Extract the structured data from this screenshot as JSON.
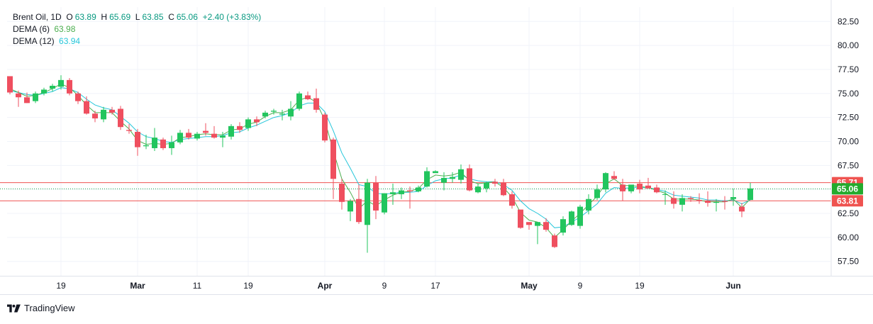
{
  "legend": {
    "symbol": "Brent Oil",
    "interval": "1D",
    "open_label": "O",
    "open": "63.89",
    "high_label": "H",
    "high": "65.69",
    "low_label": "L",
    "low": "63.85",
    "close_label": "C",
    "close": "65.06",
    "change": "+2.40 (+3.83%)",
    "dema6_label": "DEMA (6)",
    "dema6_value": "63.98",
    "dema12_label": "DEMA (12)",
    "dema12_value": "63.94"
  },
  "brand": {
    "name": "TradingView"
  },
  "colors": {
    "up": "#22c55e",
    "down": "#ef4f5f",
    "dema6": "#4caf50",
    "dema12": "#26c6da",
    "hline": "#ef5350",
    "grid": "#f0f3fa",
    "axis_text": "#131722"
  },
  "chart_data": {
    "type": "candlestick",
    "title": "Brent Oil, 1D",
    "ylim": [
      56,
      84
    ],
    "y_ticks": [
      57.5,
      60,
      62.5,
      65,
      67.5,
      70,
      72.5,
      75,
      77.5,
      80,
      82.5
    ],
    "x_ticks": [
      {
        "label": "19",
        "index": 6,
        "bold": false
      },
      {
        "label": "Mar",
        "index": 15,
        "bold": true
      },
      {
        "label": "11",
        "index": 22,
        "bold": false
      },
      {
        "label": "19",
        "index": 28,
        "bold": false
      },
      {
        "label": "Apr",
        "index": 37,
        "bold": true
      },
      {
        "label": "9",
        "index": 44,
        "bold": false
      },
      {
        "label": "17",
        "index": 50,
        "bold": false
      },
      {
        "label": "May",
        "index": 61,
        "bold": true
      },
      {
        "label": "9",
        "index": 67,
        "bold": false
      },
      {
        "label": "19",
        "index": 74,
        "bold": false
      },
      {
        "label": "Jun",
        "index": 85,
        "bold": true
      }
    ],
    "h_lines": [
      {
        "value": 65.71,
        "label": "65.71",
        "style": "solid"
      },
      {
        "value": 63.81,
        "label": "63.81",
        "style": "solid"
      },
      {
        "value": 65.06,
        "label": "65.06",
        "style": "dotted"
      }
    ],
    "last_price": 65.06,
    "candles": [
      [
        76.8,
        76.8,
        74.9,
        75.1
      ],
      [
        75.0,
        75.3,
        73.6,
        74.6
      ],
      [
        74.6,
        75.1,
        74.0,
        74.0
      ],
      [
        74.2,
        75.2,
        74.0,
        75.0
      ],
      [
        75.0,
        75.6,
        74.8,
        75.4
      ],
      [
        75.5,
        76.0,
        75.2,
        75.8
      ],
      [
        75.7,
        76.9,
        75.4,
        76.4
      ],
      [
        76.4,
        76.6,
        74.8,
        75.0
      ],
      [
        75.0,
        75.2,
        73.9,
        74.2
      ],
      [
        74.2,
        74.7,
        72.8,
        72.9
      ],
      [
        72.9,
        73.2,
        72.0,
        72.4
      ],
      [
        72.3,
        73.6,
        72.0,
        73.3
      ],
      [
        73.3,
        73.6,
        72.8,
        73.0
      ],
      [
        73.4,
        73.7,
        71.2,
        71.5
      ],
      [
        71.2,
        71.8,
        70.8,
        71.1
      ],
      [
        71.0,
        71.3,
        68.5,
        69.4
      ],
      [
        69.5,
        70.7,
        69.2,
        69.6
      ],
      [
        69.3,
        71.4,
        69.0,
        70.4
      ],
      [
        70.2,
        70.4,
        69.1,
        69.3
      ],
      [
        69.3,
        70.6,
        68.6,
        69.9
      ],
      [
        69.9,
        71.2,
        69.7,
        70.9
      ],
      [
        70.9,
        71.3,
        70.2,
        70.4
      ],
      [
        70.3,
        71.0,
        70.1,
        70.8
      ],
      [
        71.1,
        71.9,
        70.6,
        70.9
      ],
      [
        70.8,
        71.6,
        70.3,
        70.4
      ],
      [
        70.4,
        71.0,
        69.4,
        70.6
      ],
      [
        70.5,
        71.8,
        70.2,
        71.6
      ],
      [
        71.6,
        72.0,
        70.9,
        71.2
      ],
      [
        71.4,
        72.5,
        71.1,
        72.3
      ],
      [
        72.3,
        72.6,
        71.6,
        72.0
      ],
      [
        72.6,
        73.2,
        72.4,
        73.0
      ],
      [
        73.1,
        73.4,
        72.8,
        73.2
      ],
      [
        72.8,
        73.3,
        72.2,
        72.9
      ],
      [
        72.6,
        74.2,
        72.2,
        73.4
      ],
      [
        73.4,
        75.2,
        73.2,
        75.0
      ],
      [
        74.8,
        75.2,
        74.3,
        74.4
      ],
      [
        74.5,
        75.5,
        73.0,
        73.3
      ],
      [
        72.8,
        73.0,
        69.9,
        70.1
      ],
      [
        70.2,
        70.4,
        64.0,
        66.1
      ],
      [
        65.6,
        66.1,
        62.9,
        63.7
      ],
      [
        62.7,
        64.0,
        61.7,
        63.8
      ],
      [
        64.0,
        65.5,
        61.4,
        61.6
      ],
      [
        61.3,
        66.1,
        58.4,
        65.7
      ],
      [
        65.7,
        66.4,
        61.9,
        62.8
      ],
      [
        62.6,
        64.6,
        62.4,
        64.6
      ],
      [
        64.5,
        65.6,
        63.4,
        64.7
      ],
      [
        64.5,
        65.2,
        64.0,
        64.9
      ],
      [
        64.9,
        65.3,
        63.0,
        64.8
      ],
      [
        64.8,
        65.4,
        64.7,
        65.2
      ],
      [
        65.3,
        67.3,
        65.2,
        66.9
      ],
      [
        66.7,
        67.0,
        66.8,
        66.9
      ],
      [
        65.7,
        66.8,
        64.9,
        66.2
      ],
      [
        66.1,
        66.8,
        65.7,
        66.3
      ],
      [
        66.0,
        67.6,
        65.6,
        67.1
      ],
      [
        67.2,
        67.6,
        64.8,
        64.9
      ],
      [
        64.7,
        65.6,
        64.6,
        65.3
      ],
      [
        65.1,
        65.8,
        64.7,
        65.7
      ],
      [
        65.8,
        66.1,
        65.3,
        65.6
      ],
      [
        65.7,
        66.1,
        64.3,
        64.4
      ],
      [
        64.5,
        64.8,
        63.0,
        63.3
      ],
      [
        62.9,
        62.8,
        60.9,
        61.0
      ],
      [
        61.6,
        61.6,
        60.8,
        61.3
      ],
      [
        61.2,
        61.6,
        59.3,
        61.6
      ],
      [
        61.6,
        62.0,
        60.6,
        60.8
      ],
      [
        60.2,
        60.4,
        58.9,
        59.0
      ],
      [
        60.5,
        62.2,
        60.2,
        61.9
      ],
      [
        61.3,
        62.8,
        61.2,
        62.7
      ],
      [
        61.2,
        63.4,
        60.9,
        63.2
      ],
      [
        62.8,
        64.5,
        62.4,
        64.0
      ],
      [
        64.1,
        65.5,
        63.9,
        65.0
      ],
      [
        65.0,
        66.8,
        64.7,
        66.7
      ],
      [
        66.4,
        66.9,
        66.0,
        66.1
      ],
      [
        65.5,
        66.1,
        63.8,
        64.8
      ],
      [
        64.8,
        65.4,
        64.6,
        65.5
      ],
      [
        65.6,
        66.0,
        64.6,
        65.0
      ],
      [
        65.4,
        66.2,
        65.3,
        65.1
      ],
      [
        65.2,
        65.5,
        64.6,
        64.7
      ],
      [
        64.5,
        64.9,
        63.4,
        64.5
      ],
      [
        64.1,
        64.8,
        63.0,
        63.5
      ],
      [
        63.4,
        64.5,
        62.7,
        64.1
      ],
      [
        64.1,
        64.3,
        63.7,
        64.0
      ],
      [
        63.9,
        64.6,
        63.5,
        63.8
      ],
      [
        63.8,
        64.8,
        63.2,
        63.6
      ],
      [
        63.6,
        64.0,
        62.7,
        63.7
      ],
      [
        63.8,
        64.3,
        62.9,
        63.7
      ],
      [
        64.0,
        65.1,
        63.3,
        64.2
      ],
      [
        63.2,
        63.6,
        62.1,
        62.7
      ],
      [
        63.9,
        65.7,
        63.9,
        65.1
      ]
    ],
    "dema6": [
      75.5,
      75.1,
      74.7,
      74.8,
      75.1,
      75.5,
      76.0,
      75.6,
      74.8,
      73.8,
      73.0,
      73.0,
      73.0,
      72.1,
      71.3,
      70.1,
      69.7,
      69.8,
      69.7,
      69.8,
      70.4,
      70.5,
      70.7,
      70.8,
      70.7,
      70.7,
      71.2,
      71.3,
      71.8,
      72.0,
      72.6,
      73.0,
      73.0,
      73.3,
      74.3,
      74.6,
      74.1,
      72.2,
      69.0,
      66.1,
      64.7,
      63.0,
      63.8,
      63.3,
      63.9,
      64.4,
      64.7,
      64.8,
      65.1,
      66.0,
      66.5,
      66.4,
      66.5,
      66.8,
      65.9,
      65.6,
      65.7,
      65.8,
      65.2,
      64.2,
      62.6,
      61.8,
      61.6,
      61.0,
      60.0,
      60.8,
      61.7,
      62.5,
      63.4,
      64.3,
      65.6,
      66.1,
      65.4,
      65.4,
      65.3,
      65.2,
      64.9,
      64.6,
      64.0,
      64.0,
      64.0,
      63.9,
      63.7,
      63.7,
      63.7,
      64.0,
      63.1,
      64.0
    ],
    "dema12": [
      75.3,
      75.1,
      74.9,
      74.8,
      75.0,
      75.2,
      75.6,
      75.5,
      75.1,
      74.4,
      73.8,
      73.5,
      73.3,
      72.6,
      71.9,
      71.0,
      70.5,
      70.3,
      70.0,
      69.9,
      70.2,
      70.3,
      70.4,
      70.5,
      70.5,
      70.6,
      70.9,
      71.0,
      71.4,
      71.7,
      72.1,
      72.5,
      72.7,
      73.0,
      73.7,
      74.0,
      74.0,
      73.1,
      71.1,
      68.8,
      67.2,
      65.5,
      65.3,
      64.6,
      64.5,
      64.6,
      64.7,
      64.7,
      64.8,
      65.4,
      65.9,
      66.1,
      66.2,
      66.5,
      66.1,
      65.9,
      65.8,
      65.8,
      65.5,
      64.9,
      63.8,
      63.0,
      62.5,
      61.9,
      61.0,
      61.1,
      61.6,
      62.1,
      62.8,
      63.5,
      64.6,
      65.2,
      65.1,
      65.2,
      65.2,
      65.2,
      65.0,
      64.8,
      64.4,
      64.3,
      64.2,
      64.1,
      63.9,
      63.9,
      63.8,
      63.9,
      63.5,
      63.9
    ]
  }
}
